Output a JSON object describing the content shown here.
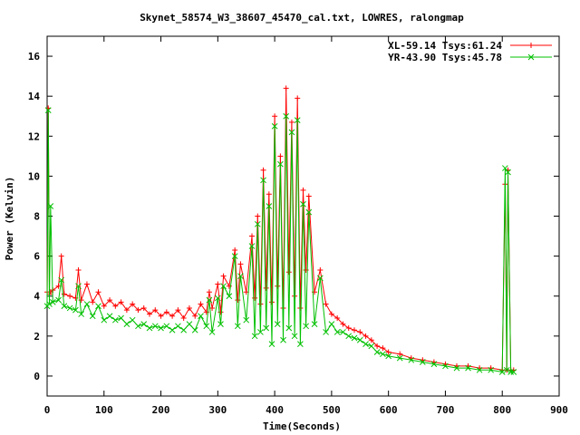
{
  "chart_data": {
    "type": "line",
    "title": "Skynet_58574_W3_38607_45470_cal.txt, LOWRES, ralongmap",
    "xlabel": "Time(Seconds)",
    "ylabel": "Power (Kelvin)",
    "xlim": [
      0,
      900
    ],
    "ylim": [
      -1,
      17
    ],
    "xticks": [
      0,
      100,
      200,
      300,
      400,
      500,
      600,
      700,
      800,
      900
    ],
    "yticks": [
      0,
      2,
      4,
      6,
      8,
      10,
      12,
      14,
      16
    ],
    "grid": false,
    "legend_position": "top-right",
    "series": [
      {
        "name": "XL-59.14 Tsys:61.24",
        "color": "#ff0000",
        "marker": "+",
        "x": [
          0,
          2,
          4,
          6,
          10,
          20,
          25,
          30,
          40,
          50,
          55,
          60,
          70,
          80,
          90,
          100,
          110,
          120,
          130,
          140,
          150,
          160,
          170,
          180,
          190,
          200,
          210,
          220,
          230,
          240,
          250,
          260,
          270,
          280,
          285,
          290,
          300,
          305,
          310,
          320,
          330,
          335,
          340,
          350,
          360,
          365,
          370,
          375,
          380,
          385,
          390,
          395,
          400,
          405,
          410,
          415,
          420,
          425,
          430,
          435,
          440,
          445,
          450,
          455,
          460,
          470,
          480,
          490,
          500,
          510,
          520,
          530,
          540,
          550,
          560,
          570,
          580,
          590,
          600,
          620,
          640,
          660,
          680,
          700,
          720,
          740,
          760,
          780,
          800,
          805,
          808,
          810,
          815,
          820
        ],
        "y": [
          4.2,
          13.4,
          4.1,
          4.2,
          4.3,
          4.5,
          6.0,
          4.1,
          4.0,
          3.9,
          5.3,
          3.8,
          4.6,
          3.7,
          4.2,
          3.5,
          3.8,
          3.5,
          3.7,
          3.3,
          3.6,
          3.3,
          3.4,
          3.1,
          3.3,
          3.0,
          3.2,
          3.0,
          3.3,
          2.9,
          3.4,
          3.0,
          3.6,
          3.2,
          4.2,
          3.4,
          4.6,
          3.2,
          5.0,
          4.5,
          6.3,
          3.8,
          5.6,
          4.2,
          7.0,
          3.9,
          8.0,
          3.6,
          10.3,
          4.4,
          9.1,
          3.7,
          13.0,
          4.5,
          11.0,
          3.4,
          14.4,
          5.2,
          12.7,
          4.0,
          13.9,
          3.4,
          9.3,
          5.3,
          9.0,
          4.2,
          5.3,
          3.6,
          3.1,
          2.9,
          2.6,
          2.4,
          2.3,
          2.2,
          2.0,
          1.8,
          1.5,
          1.4,
          1.2,
          1.1,
          0.9,
          0.8,
          0.7,
          0.6,
          0.5,
          0.5,
          0.4,
          0.4,
          0.3,
          9.6,
          0.3,
          10.3,
          0.3,
          0.3
        ]
      },
      {
        "name": "YR-43.90 Tsys:45.78",
        "color": "#00c000",
        "marker": "x",
        "x": [
          0,
          2,
          4,
          6,
          10,
          20,
          25,
          30,
          40,
          50,
          55,
          60,
          70,
          80,
          90,
          100,
          110,
          120,
          130,
          140,
          150,
          160,
          170,
          180,
          190,
          200,
          210,
          220,
          230,
          240,
          250,
          260,
          270,
          280,
          285,
          290,
          300,
          305,
          310,
          320,
          330,
          335,
          340,
          350,
          360,
          365,
          370,
          375,
          380,
          385,
          390,
          395,
          400,
          405,
          410,
          415,
          420,
          425,
          430,
          435,
          440,
          445,
          450,
          455,
          460,
          470,
          480,
          490,
          500,
          510,
          520,
          530,
          540,
          550,
          560,
          570,
          580,
          590,
          600,
          620,
          640,
          660,
          680,
          700,
          720,
          740,
          760,
          780,
          800,
          805,
          808,
          810,
          815,
          820
        ],
        "y": [
          3.5,
          13.3,
          3.6,
          8.5,
          3.7,
          3.8,
          4.8,
          3.5,
          3.4,
          3.3,
          4.5,
          3.1,
          3.6,
          3.0,
          3.5,
          2.8,
          3.0,
          2.8,
          2.9,
          2.6,
          2.8,
          2.5,
          2.6,
          2.4,
          2.5,
          2.4,
          2.5,
          2.3,
          2.5,
          2.3,
          2.6,
          2.3,
          3.0,
          2.5,
          3.8,
          2.2,
          3.9,
          2.6,
          4.5,
          4.0,
          6.0,
          2.5,
          5.0,
          2.8,
          6.5,
          2.0,
          7.6,
          2.2,
          9.8,
          2.4,
          8.5,
          1.6,
          12.5,
          2.6,
          10.6,
          1.8,
          13.0,
          2.4,
          12.2,
          2.0,
          12.8,
          1.6,
          8.6,
          2.5,
          8.2,
          2.6,
          4.9,
          2.2,
          2.6,
          2.2,
          2.2,
          2.0,
          1.9,
          1.8,
          1.6,
          1.5,
          1.2,
          1.1,
          1.0,
          0.9,
          0.8,
          0.7,
          0.6,
          0.5,
          0.4,
          0.4,
          0.3,
          0.3,
          0.2,
          10.4,
          0.3,
          10.2,
          0.2,
          0.2
        ]
      }
    ]
  }
}
